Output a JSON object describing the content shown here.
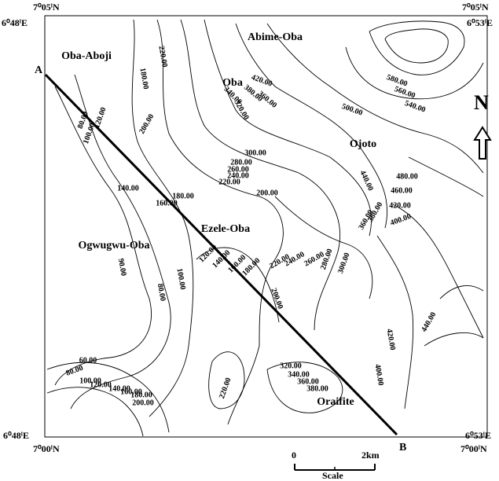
{
  "corner_labels": {
    "top_left_lat": "7⁰05ˡN",
    "top_left_lon": "6⁰48ˡE",
    "top_right_lat": "7⁰05ˡN",
    "top_right_lon": "6⁰53ˡE",
    "bottom_left_lon": "6⁰48ˡE",
    "bottom_left_lat": "7⁰00ˡN",
    "bottom_right_lon": "6⁰53ˡE",
    "bottom_right_lat": "7⁰00ˡN"
  },
  "profile": {
    "start": "A",
    "end": "B"
  },
  "places": [
    "Abime-Oba",
    "Oba-Aboji",
    "Oba",
    "Ojoto",
    "Ezele-Oba",
    "Ogwugwu-Oba",
    "Oraifite"
  ],
  "contour_labels": [
    "180.00",
    "220.00",
    "200.00",
    "80.00",
    "100.00",
    "120.00",
    "420.00",
    "380.00",
    "360.00",
    "340.00",
    "320.00",
    "500.00",
    "580.00",
    "560.00",
    "540.00",
    "300.00",
    "280.00",
    "260.00",
    "240.00",
    "220.00",
    "200.00",
    "180.00",
    "160.00",
    "140.00",
    "440.00",
    "480.00",
    "460.00",
    "420.00",
    "400.00",
    "380.00",
    "360.00",
    "120.00",
    "140.00",
    "160.00",
    "180.00",
    "220.00",
    "240.00",
    "260.00",
    "280.00",
    "300.00",
    "200.00",
    "90.00",
    "100.00",
    "80.00",
    "440.00",
    "420.00",
    "400.00",
    "60.00",
    "80.00",
    "100.00",
    "120.00",
    "140.00",
    "160.00",
    "180.00",
    "200.00",
    "320.00",
    "340.00",
    "360.00",
    "380.00",
    "220.00"
  ],
  "north": "N",
  "scale": {
    "start": "0",
    "end": "2km",
    "title": "Scale"
  }
}
